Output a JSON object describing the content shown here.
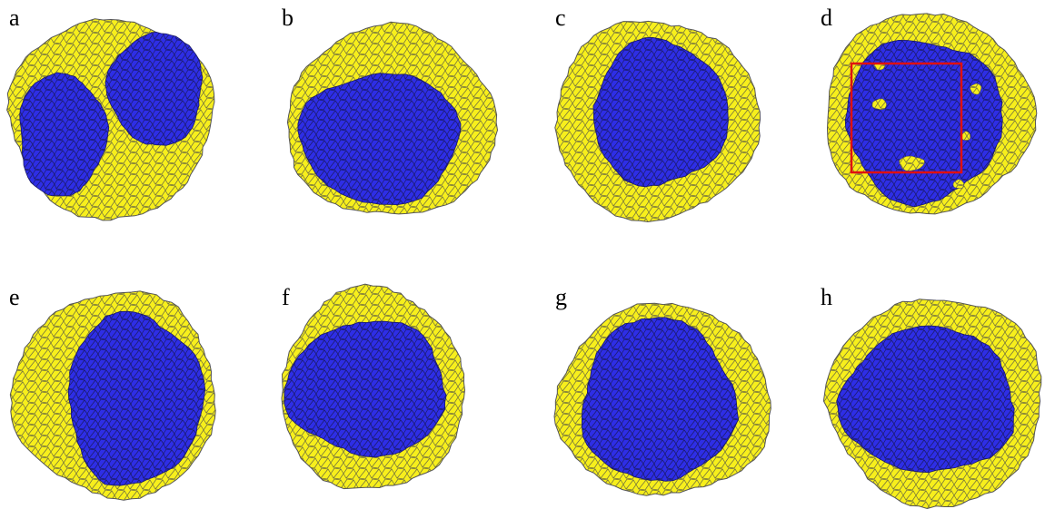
{
  "panels": [
    {
      "label": "a"
    },
    {
      "label": "b"
    },
    {
      "label": "c"
    },
    {
      "label": "d"
    },
    {
      "label": "e"
    },
    {
      "label": "f"
    },
    {
      "label": "g"
    },
    {
      "label": "h"
    }
  ]
}
